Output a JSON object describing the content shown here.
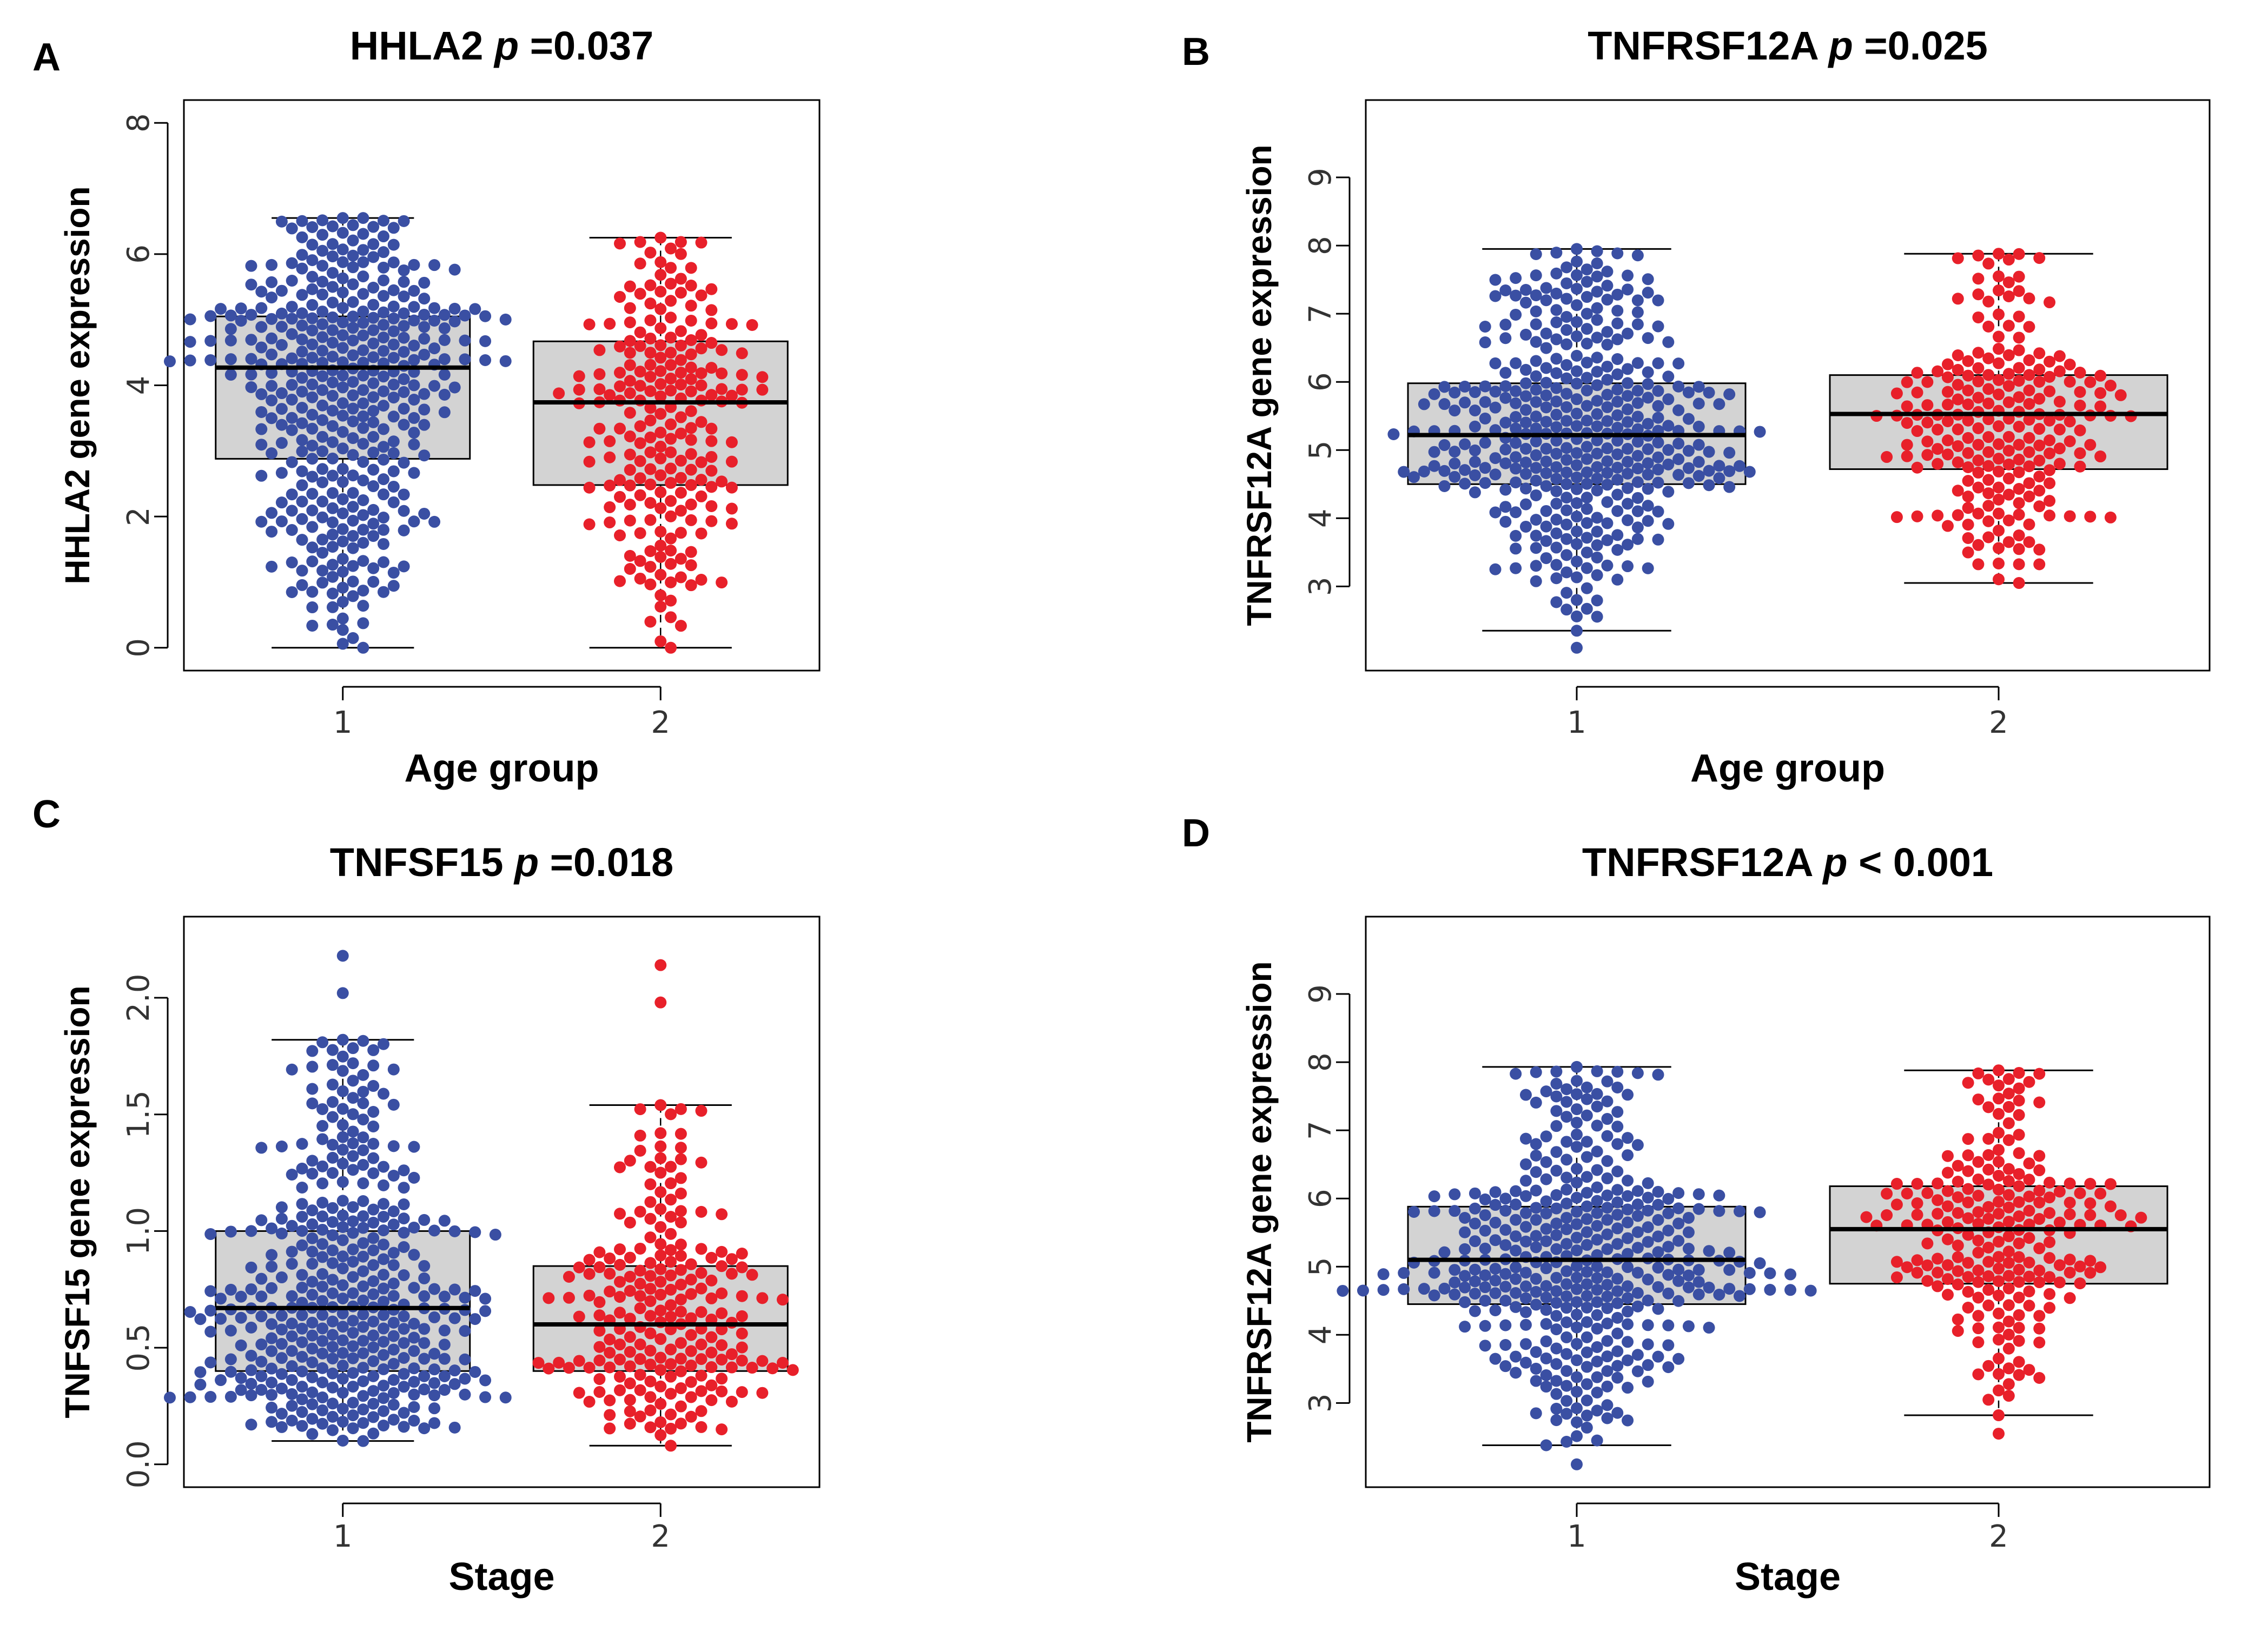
{
  "chart_data": [
    {
      "panel": "A",
      "type": "boxplot",
      "title_gene": "HHLA2",
      "title_p_symbol": "p",
      "title_p_value": "=0.037",
      "ylabel": "HHLA2 gene expression",
      "xlabel": "Age group",
      "categories": [
        "1",
        "2"
      ],
      "ylim": [
        0,
        8
      ],
      "yticks": [
        0,
        2,
        4,
        6,
        8
      ],
      "yticklabels": [
        "0",
        "2",
        "4",
        "6",
        "8"
      ],
      "boxes": [
        {
          "group": "1",
          "color": "#3a4fa3",
          "whisker_low": 0,
          "q1": 2.88,
          "median": 4.27,
          "q3": 5.05,
          "whisker_high": 6.55,
          "n": 400
        },
        {
          "group": "2",
          "color": "#e8202a",
          "whisker_low": 0,
          "q1": 2.48,
          "median": 3.74,
          "q3": 4.67,
          "whisker_high": 6.25,
          "n": 220
        }
      ],
      "grid": false
    },
    {
      "panel": "B",
      "type": "boxplot",
      "title_gene": "TNFRSF12A",
      "title_p_symbol": "p",
      "title_p_value": "=0.025",
      "ylabel": "TNFRSF12A gene expression",
      "xlabel": "Age group",
      "categories": [
        "1",
        "2"
      ],
      "ylim": [
        2.1,
        9.8
      ],
      "yticks": [
        3,
        4,
        5,
        6,
        7,
        8,
        9
      ],
      "yticklabels": [
        "3",
        "4",
        "5",
        "6",
        "7",
        "8",
        "9"
      ],
      "boxes": [
        {
          "group": "1",
          "color": "#3a4fa3",
          "whisker_low": 2.35,
          "q1": 4.5,
          "median": 5.22,
          "q3": 5.98,
          "whisker_high": 7.95,
          "n": 400,
          "min": 2.1
        },
        {
          "group": "2",
          "color": "#e8202a",
          "whisker_low": 3.05,
          "q1": 4.72,
          "median": 5.53,
          "q3": 6.1,
          "whisker_high": 7.88,
          "n": 220
        }
      ],
      "grid": false
    },
    {
      "panel": "C",
      "type": "boxplot",
      "title_gene": "TNFSF15",
      "title_p_symbol": "p",
      "title_p_value": "=0.018",
      "ylabel": "TNFSF15 gene expression",
      "xlabel": "Stage",
      "categories": [
        "1",
        "2"
      ],
      "ylim": [
        0,
        2.25
      ],
      "yticks": [
        0,
        0.5,
        1.0,
        1.5,
        2.0
      ],
      "yticklabels": [
        "0.0",
        "0.5",
        "1.0",
        "1.5",
        "2.0"
      ],
      "boxes": [
        {
          "group": "1",
          "color": "#3a4fa3",
          "whisker_low": 0.1,
          "q1": 0.4,
          "median": 0.67,
          "q3": 1.0,
          "whisker_high": 1.82,
          "n": 400,
          "max": 2.18
        },
        {
          "group": "2",
          "color": "#e8202a",
          "whisker_low": 0.08,
          "q1": 0.4,
          "median": 0.6,
          "q3": 0.85,
          "whisker_high": 1.54,
          "n": 220,
          "max": 2.14
        }
      ],
      "grid": false
    },
    {
      "panel": "D",
      "type": "boxplot",
      "title_gene": "TNFRSF12A",
      "title_p_symbol": "p",
      "title_p_value": "< 0.001",
      "ylabel": "TNFRSF12A gene expression",
      "xlabel": "Stage",
      "categories": [
        "1",
        "2"
      ],
      "ylim": [
        2.1,
        9.8
      ],
      "yticks": [
        3,
        4,
        5,
        6,
        7,
        8,
        9
      ],
      "yticklabels": [
        "3",
        "4",
        "5",
        "6",
        "7",
        "8",
        "9"
      ],
      "boxes": [
        {
          "group": "1",
          "color": "#3a4fa3",
          "whisker_low": 2.38,
          "q1": 4.45,
          "median": 5.1,
          "q3": 5.88,
          "whisker_high": 7.93,
          "n": 400,
          "min": 2.1
        },
        {
          "group": "2",
          "color": "#e8202a",
          "whisker_low": 2.82,
          "q1": 4.75,
          "median": 5.55,
          "q3": 6.18,
          "whisker_high": 7.88,
          "n": 220,
          "min": 2.55
        }
      ],
      "grid": false
    }
  ]
}
